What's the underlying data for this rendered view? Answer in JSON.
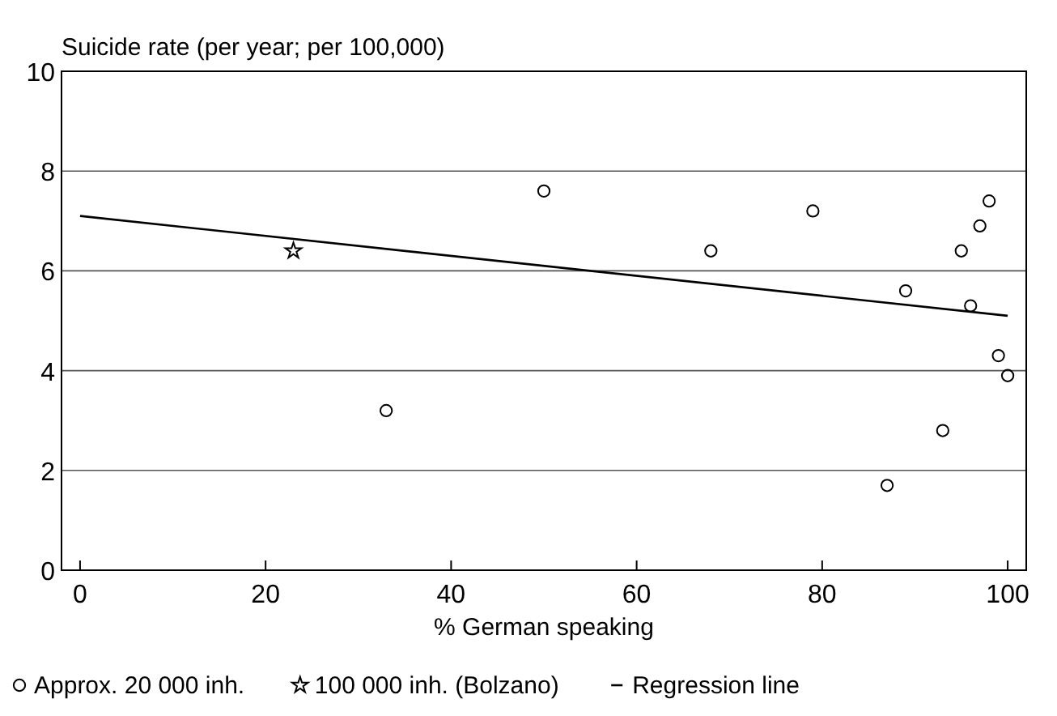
{
  "chart_data": {
    "type": "scatter",
    "ylabel": "Suicide rate (per year; per 100,000)",
    "xlabel": "% German speaking",
    "xlim": [
      -2,
      102
    ],
    "xticks": [
      0,
      20,
      40,
      60,
      80,
      100
    ],
    "ylim": [
      0,
      10
    ],
    "yticks": [
      0,
      2,
      4,
      6,
      8,
      10
    ],
    "grid": "y",
    "legend": "bottom",
    "series": [
      {
        "name": "Approx. 20 000 inh.",
        "marker": "circle",
        "color": "#000000",
        "x": [
          33,
          50,
          68,
          79,
          87,
          89,
          93,
          95,
          96,
          97,
          98,
          99,
          100
        ],
        "values": [
          3.2,
          7.6,
          6.4,
          7.2,
          1.7,
          5.6,
          2.8,
          6.4,
          5.3,
          6.9,
          7.4,
          4.3,
          3.9
        ]
      },
      {
        "name": "100 000 inh. (Bolzano)",
        "marker": "star",
        "color": "#000000",
        "x": [
          23
        ],
        "values": [
          6.4
        ]
      },
      {
        "name": "Regression line",
        "type": "line",
        "color": "#000000",
        "x": [
          0,
          100
        ],
        "values": [
          7.1,
          5.1
        ]
      }
    ]
  }
}
